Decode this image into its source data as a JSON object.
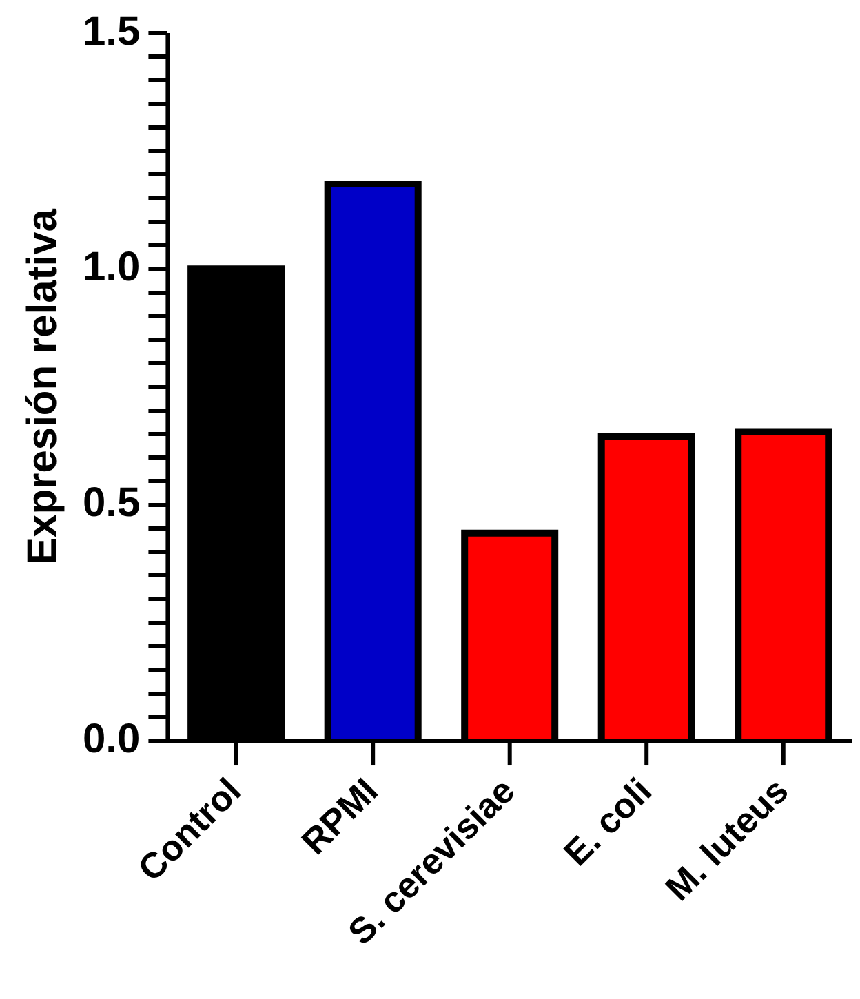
{
  "chart_data": {
    "type": "bar",
    "ylabel": "Expresión relativa",
    "categories": [
      "Control",
      "RPMI",
      "S. cerevisiae",
      "E. coli",
      "M. luteus"
    ],
    "values": [
      1.0,
      1.18,
      0.44,
      0.645,
      0.655
    ],
    "colors": [
      "#000000",
      "#0000c8",
      "#ff0000",
      "#ff0000",
      "#ff0000"
    ],
    "ylim": [
      0,
      1.5
    ],
    "yticks": [
      {
        "value": 0,
        "label": "0.0"
      },
      {
        "value": 0.05,
        "label": null
      },
      {
        "value": 0.1,
        "label": null
      },
      {
        "value": 0.15,
        "label": null
      },
      {
        "value": 0.2,
        "label": null
      },
      {
        "value": 0.25,
        "label": null
      },
      {
        "value": 0.3,
        "label": null
      },
      {
        "value": 0.35,
        "label": null
      },
      {
        "value": 0.4,
        "label": null
      },
      {
        "value": 0.45,
        "label": null
      },
      {
        "value": 0.5,
        "label": "0.5"
      },
      {
        "value": 0.55,
        "label": null
      },
      {
        "value": 0.6,
        "label": null
      },
      {
        "value": 0.65,
        "label": null
      },
      {
        "value": 0.7,
        "label": null
      },
      {
        "value": 0.75,
        "label": null
      },
      {
        "value": 0.8,
        "label": null
      },
      {
        "value": 0.85,
        "label": null
      },
      {
        "value": 0.9,
        "label": null
      },
      {
        "value": 0.95,
        "label": null
      },
      {
        "value": 1.0,
        "label": "1.0"
      },
      {
        "value": 1.05,
        "label": null
      },
      {
        "value": 1.1,
        "label": null
      },
      {
        "value": 1.15,
        "label": null
      },
      {
        "value": 1.2,
        "label": null
      },
      {
        "value": 1.25,
        "label": null
      },
      {
        "value": 1.3,
        "label": null
      },
      {
        "value": 1.35,
        "label": null
      },
      {
        "value": 1.4,
        "label": null
      },
      {
        "value": 1.45,
        "label": null
      },
      {
        "value": 1.5,
        "label": "1.5"
      }
    ],
    "grid": false,
    "legend": false
  }
}
